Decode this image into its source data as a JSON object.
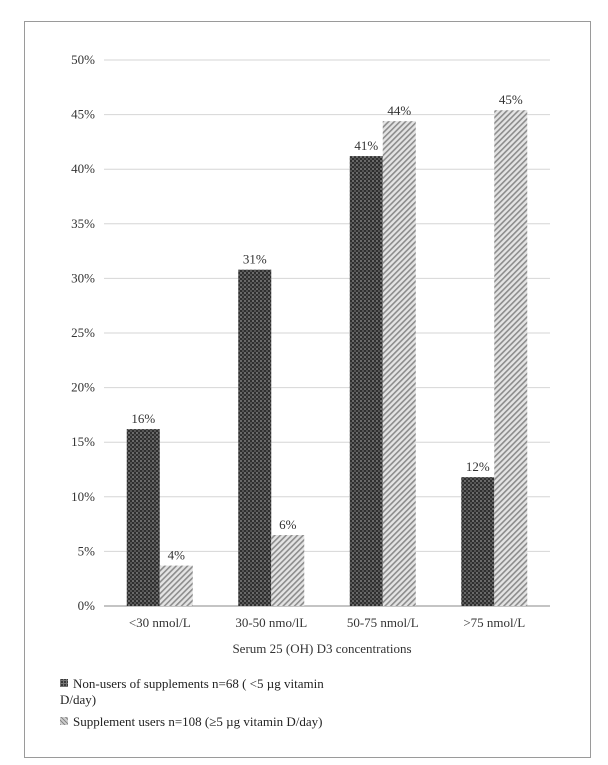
{
  "chart_data": {
    "type": "bar",
    "categories": [
      "<30 nmol/L",
      "30-50 nmo/lL",
      "50-75 nmol/L",
      ">75 nmol/L"
    ],
    "series": [
      {
        "name": "Non-users of supplements  n=68 ( <5 µg vitamin D/day)",
        "values": [
          16,
          31,
          41,
          12
        ],
        "labels": [
          "16%",
          "31%",
          "41%",
          "12%"
        ],
        "color": "#3a3a3a"
      },
      {
        "name": "Supplement users n=108 (≥5 µg vitamin D/day)",
        "values": [
          4,
          6,
          44,
          45
        ],
        "labels": [
          "4%",
          "6%",
          "44%",
          "45%"
        ],
        "color": "#cfcfcf"
      }
    ],
    "plotted_values": [
      [
        16.2,
        30.8,
        41.2,
        11.8
      ],
      [
        3.7,
        6.5,
        44.4,
        45.4
      ]
    ],
    "yticks": [
      "0%",
      "5%",
      "10%",
      "15%",
      "20%",
      "25%",
      "30%",
      "35%",
      "40%",
      "45%",
      "50%"
    ],
    "ylim": [
      0,
      50
    ],
    "xlabel": "Serum  25 (OH) D3 concentrations",
    "ylabel": "",
    "grid": true,
    "legend_position": "bottom-left"
  }
}
